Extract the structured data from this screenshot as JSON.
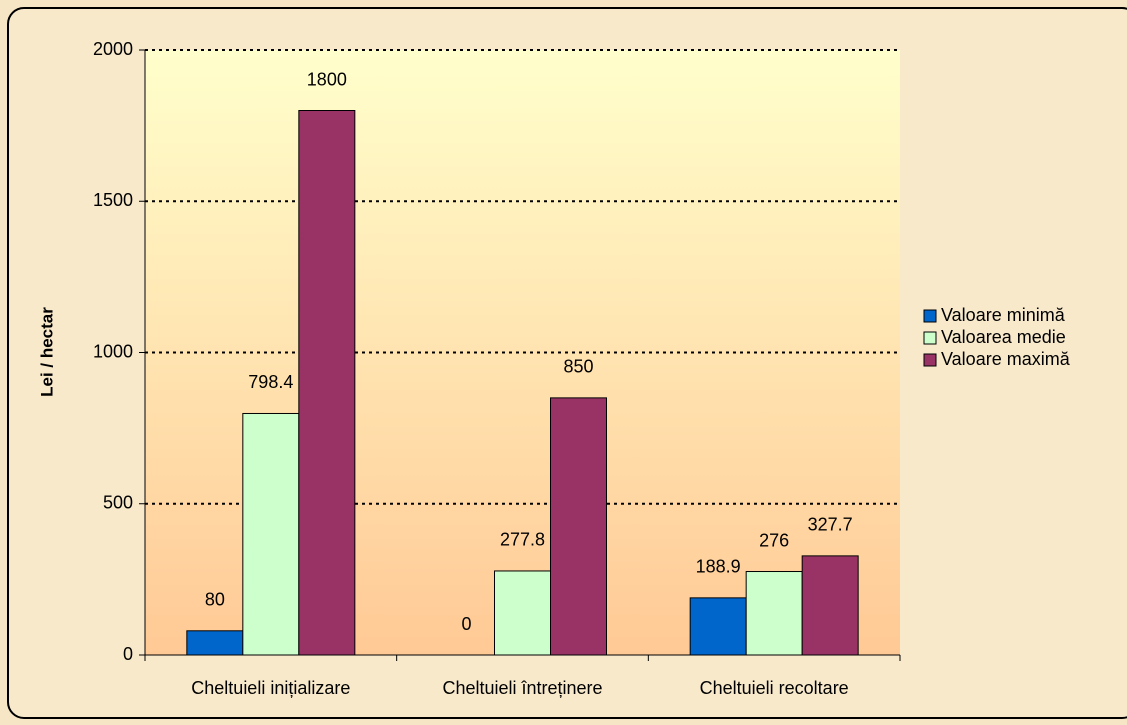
{
  "chart_data": {
    "type": "bar",
    "y_label": "Lei / hectar",
    "categories": [
      "Cheltuieli inițializare",
      "Cheltuieli întreținere",
      "Cheltuieli recoltare"
    ],
    "series": [
      {
        "name": "Valoare minimă",
        "color": "#0066cc",
        "values": [
          80,
          0,
          188.9
        ]
      },
      {
        "name": "Valoarea medie",
        "color": "#ccffcc",
        "values": [
          798.4,
          277.8,
          276
        ]
      },
      {
        "name": "Valoare maximă",
        "color": "#993366",
        "values": [
          1800,
          850,
          327.7
        ]
      }
    ],
    "ylim": [
      0,
      2000
    ],
    "yticks": [
      0,
      500,
      1000,
      1500,
      2000
    ],
    "grid": true,
    "legend": "right"
  }
}
